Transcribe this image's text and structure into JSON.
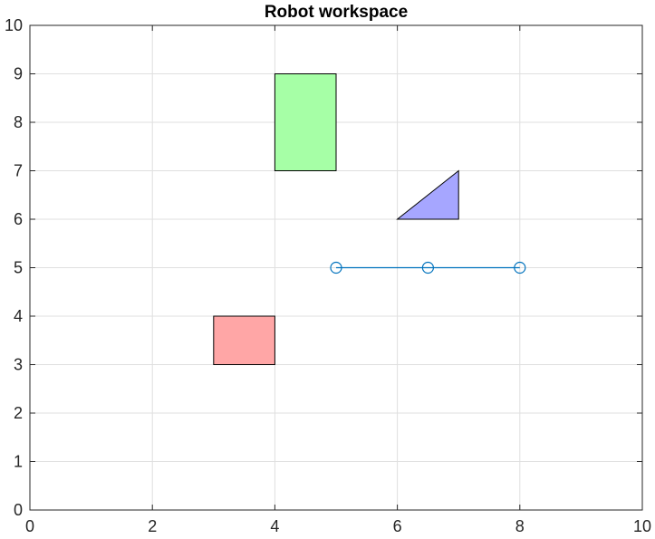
{
  "chart_data": {
    "type": "scatter",
    "title": "Robot workspace",
    "xlabel": "",
    "ylabel": "",
    "xlim": [
      0,
      10
    ],
    "ylim": [
      0,
      10
    ],
    "xticks": [
      0,
      2,
      4,
      6,
      8,
      10
    ],
    "yticks": [
      0,
      1,
      2,
      3,
      4,
      5,
      6,
      7,
      8,
      9,
      10
    ],
    "grid": true,
    "obstacles": [
      {
        "shape": "rectangle",
        "color": "#ffa6a6",
        "points": [
          [
            3,
            3
          ],
          [
            4,
            3
          ],
          [
            4,
            4
          ],
          [
            3,
            4
          ]
        ]
      },
      {
        "shape": "rectangle",
        "color": "#a6ffa6",
        "points": [
          [
            4,
            7
          ],
          [
            5,
            7
          ],
          [
            5,
            9
          ],
          [
            4,
            9
          ]
        ]
      },
      {
        "shape": "triangle",
        "color": "#a6a6ff",
        "points": [
          [
            6,
            6
          ],
          [
            7,
            6
          ],
          [
            7,
            7
          ]
        ]
      }
    ],
    "series": [
      {
        "x": [
          5,
          6.5,
          8
        ],
        "y": [
          5,
          5,
          5
        ],
        "color": "#0072bd",
        "marker": "circle"
      }
    ]
  }
}
